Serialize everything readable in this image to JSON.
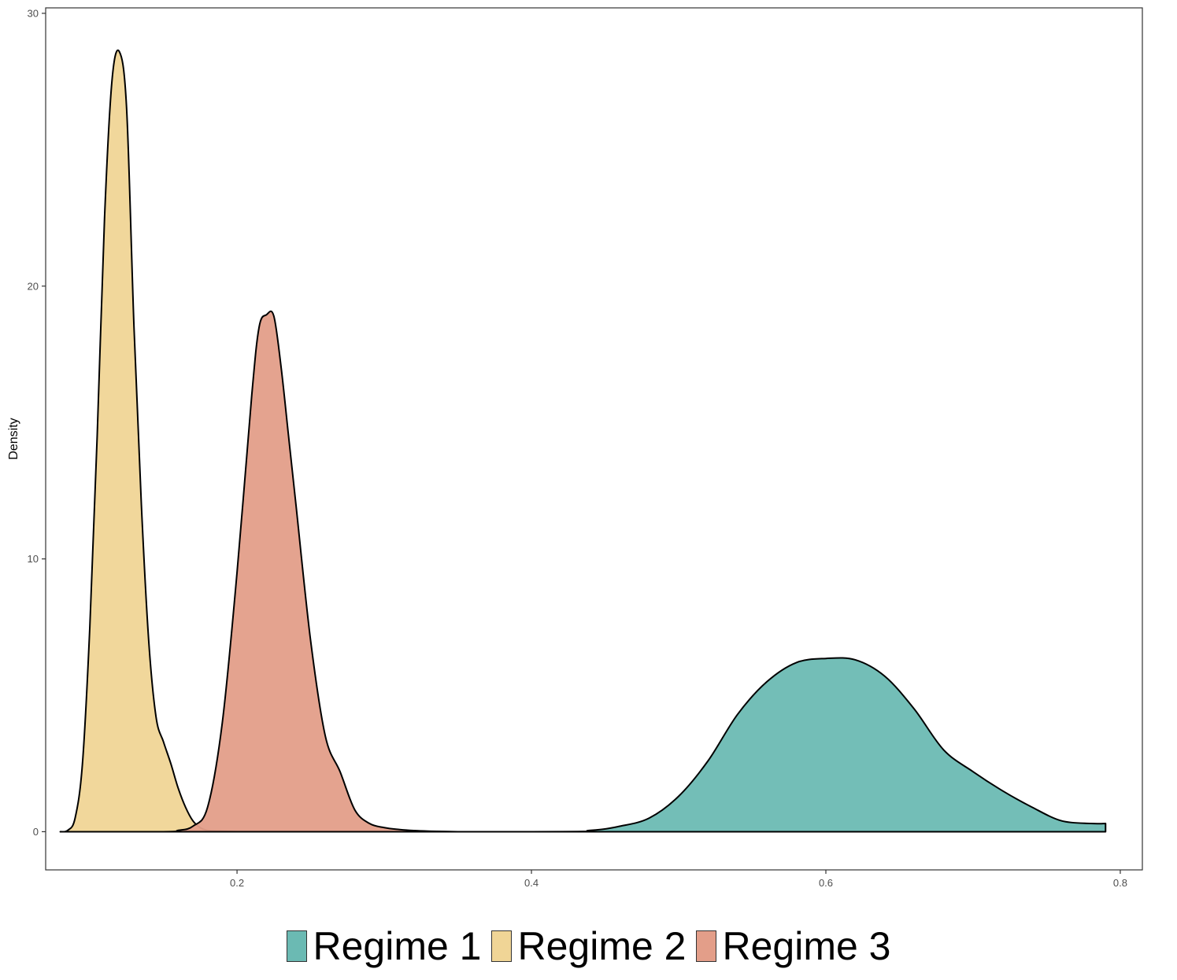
{
  "chart_data": {
    "type": "area",
    "title": "",
    "xlabel": "",
    "ylabel": "Density",
    "xlim": [
      0.07,
      0.815
    ],
    "ylim": [
      -1.4,
      30.2
    ],
    "x_ticks": [
      0.2,
      0.4,
      0.6,
      0.8
    ],
    "x_tick_labels": [
      "0.2",
      "0.4",
      "0.6",
      "0.8"
    ],
    "y_ticks": [
      0,
      10,
      20,
      30
    ],
    "y_tick_labels": [
      "0",
      "10",
      "20",
      "30"
    ],
    "grid": false,
    "legend_position": "bottom",
    "series": [
      {
        "name": "Regime 1",
        "color": "#6BBAB3",
        "x": [
          0.08,
          0.4,
          0.44,
          0.46,
          0.48,
          0.5,
          0.52,
          0.54,
          0.56,
          0.58,
          0.6,
          0.62,
          0.64,
          0.66,
          0.68,
          0.7,
          0.72,
          0.74,
          0.76,
          0.78,
          0.79
        ],
        "y": [
          0,
          0,
          0.05,
          0.2,
          0.5,
          1.3,
          2.6,
          4.3,
          5.5,
          6.2,
          6.35,
          6.3,
          5.7,
          4.5,
          3.0,
          2.2,
          1.5,
          0.9,
          0.4,
          0.3,
          0.3
        ]
      },
      {
        "name": "Regime 2",
        "color": "#F0D596",
        "x": [
          0.08,
          0.085,
          0.09,
          0.095,
          0.1,
          0.105,
          0.11,
          0.115,
          0.12,
          0.125,
          0.13,
          0.135,
          0.14,
          0.145,
          0.15,
          0.155,
          0.16,
          0.165,
          0.17,
          0.175,
          0.18,
          0.19,
          0.2
        ],
        "y": [
          0,
          0.05,
          0.5,
          2.5,
          7.5,
          14.5,
          22.5,
          27.5,
          28.6,
          26.5,
          18.5,
          12.0,
          7.0,
          4.2,
          3.3,
          2.5,
          1.6,
          0.9,
          0.4,
          0.15,
          0.05,
          0.02,
          0
        ]
      },
      {
        "name": "Regime 3",
        "color": "#E39E89",
        "x": [
          0.08,
          0.15,
          0.16,
          0.17,
          0.18,
          0.19,
          0.2,
          0.21,
          0.215,
          0.22,
          0.225,
          0.23,
          0.235,
          0.24,
          0.25,
          0.26,
          0.27,
          0.28,
          0.29,
          0.3,
          0.31,
          0.32,
          0.33,
          0.34,
          0.35
        ],
        "y": [
          0,
          0,
          0.05,
          0.2,
          0.9,
          4.0,
          9.5,
          16.0,
          18.5,
          18.95,
          18.9,
          17.0,
          14.5,
          12.0,
          7.0,
          3.5,
          2.2,
          0.8,
          0.3,
          0.15,
          0.08,
          0.04,
          0.02,
          0.01,
          0
        ]
      }
    ]
  }
}
